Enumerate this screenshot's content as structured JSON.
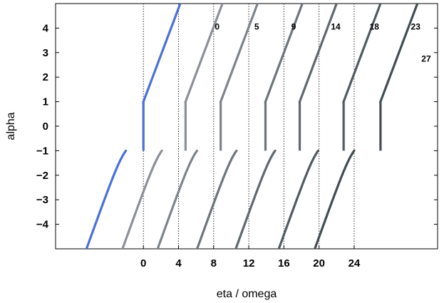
{
  "chart_data": {
    "type": "scatter",
    "xlabel": "eta / omega",
    "ylabel": "alpha",
    "xlim": [
      -10,
      33.5
    ],
    "ylim": [
      -5,
      5
    ],
    "x_ticks": [
      "0",
      "4",
      "8",
      "12",
      "16",
      "20",
      "24"
    ],
    "x_tick_values": [
      0,
      4,
      8,
      12,
      16,
      20,
      24
    ],
    "y_ticks": [
      "−4",
      "−3",
      "−2",
      "−1",
      "0",
      "1",
      "2",
      "3",
      "4"
    ],
    "y_tick_values": [
      -4,
      -3,
      -2,
      -1,
      0,
      1,
      2,
      3,
      4
    ],
    "vertical_dotted_lines": [
      0,
      4,
      8,
      12,
      16,
      20,
      24
    ],
    "grid": false,
    "series": [
      {
        "curve_label": "0",
        "color": "#4a6fd9",
        "offset": -1.5,
        "jump_x": 0,
        "label_x": 8.4,
        "label_y": 4.05
      },
      {
        "curve_label": "5",
        "color": "#8a9096",
        "offset": 2.6,
        "jump_x": 4.8,
        "label_x": 12.9,
        "label_y": 4.05
      },
      {
        "curve_label": "9",
        "color": "#7c848a",
        "offset": 6.6,
        "jump_x": 8.8,
        "label_x": 17.1,
        "label_y": 4.05
      },
      {
        "curve_label": "14",
        "color": "#6c7579",
        "offset": 11.1,
        "jump_x": 13.9,
        "label_x": 21.9,
        "label_y": 4.05
      },
      {
        "curve_label": "18",
        "color": "#5e686d",
        "offset": 15.5,
        "jump_x": 17.8,
        "label_x": 26.3,
        "label_y": 4.05
      },
      {
        "curve_label": "23",
        "color": "#4f5b5f",
        "offset": 20.4,
        "jump_x": 22.8,
        "label_x": 31.0,
        "label_y": 4.05
      },
      {
        "curve_label": "27",
        "color": "#414d52",
        "offset": 24.5,
        "jump_x": 27.0,
        "label_x": 32.2,
        "label_y": 2.75
      }
    ]
  }
}
